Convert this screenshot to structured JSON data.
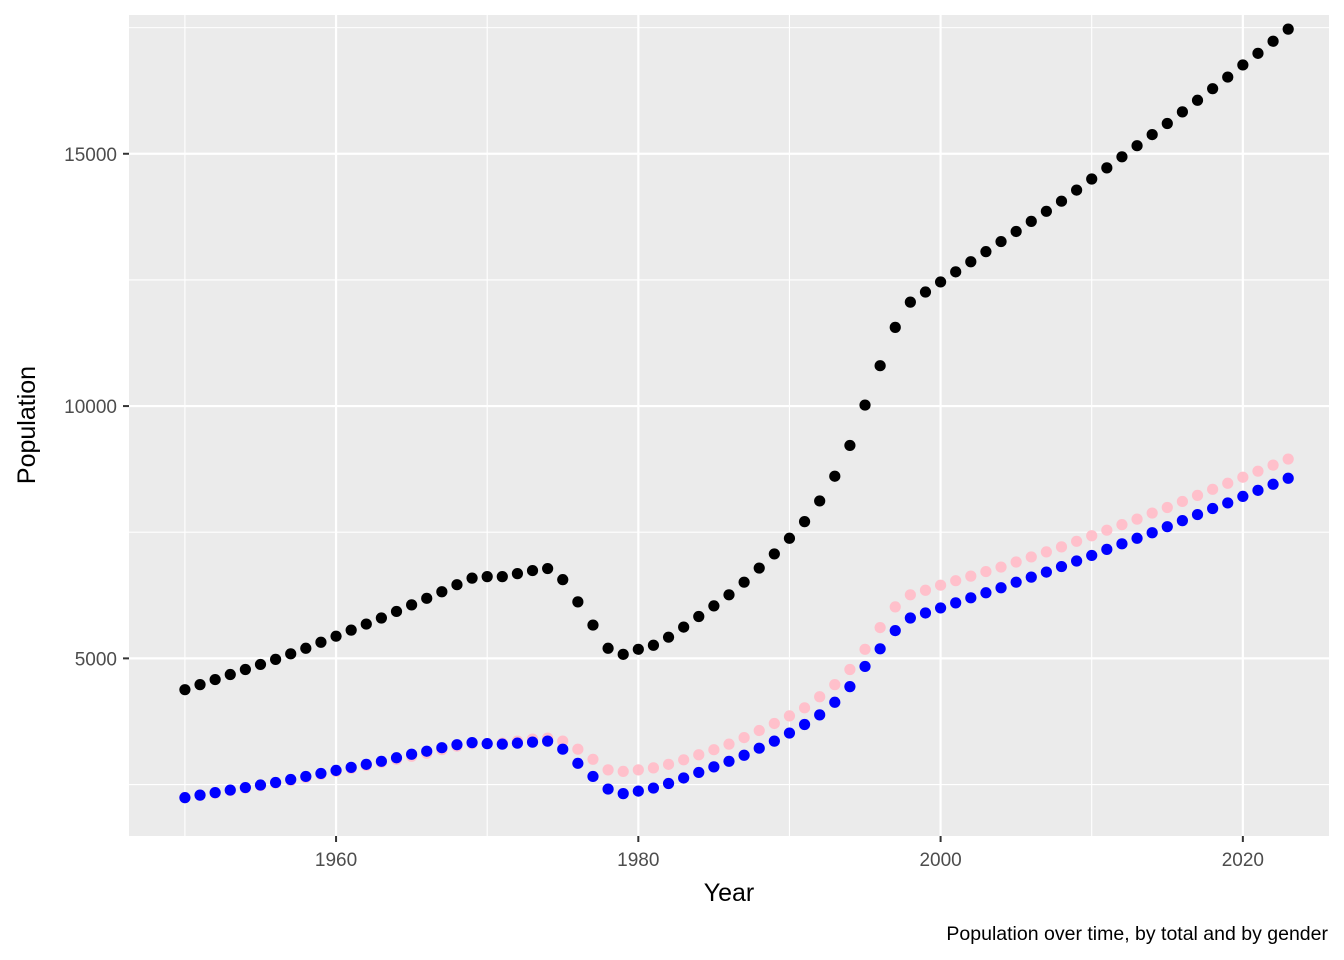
{
  "chart_data": {
    "type": "scatter",
    "title": "",
    "caption": "Population over time, by total and by gender",
    "xlabel": "Year",
    "ylabel": "Population",
    "xlim": [
      1946.3,
      1926.7
    ],
    "ylim": [
      1480,
      17750
    ],
    "x_ticks": [
      1960,
      1980,
      2000,
      2020
    ],
    "x_tick_labels": [
      "1960",
      "1980",
      "2000",
      "2020"
    ],
    "y_ticks": [
      5000,
      10000,
      15000
    ],
    "y_tick_labels": [
      "5000",
      "10000",
      "15000"
    ],
    "grid": true,
    "panel_background": "#ebebeb",
    "legend": "none",
    "x": [
      1950,
      1951,
      1952,
      1953,
      1954,
      1955,
      1956,
      1957,
      1958,
      1959,
      1960,
      1961,
      1962,
      1963,
      1964,
      1965,
      1966,
      1967,
      1968,
      1969,
      1970,
      1971,
      1972,
      1973,
      1974,
      1975,
      1976,
      1977,
      1978,
      1979,
      1980,
      1981,
      1982,
      1983,
      1984,
      1985,
      1986,
      1987,
      1988,
      1989,
      1990,
      1991,
      1992,
      1993,
      1994,
      1995,
      1996,
      1997,
      1998,
      1999,
      2000,
      2001,
      2002,
      2003,
      2004,
      2005,
      2006,
      2007,
      2008,
      2009,
      2010,
      2011,
      2012,
      2013,
      2014,
      2015,
      2016,
      2017,
      2018,
      2019,
      2020,
      2021,
      2022,
      2023
    ],
    "series": [
      {
        "color": "#000000",
        "values": [
          4380,
          4480,
          4580,
          4680,
          4780,
          4880,
          4980,
          5090,
          5200,
          5320,
          5440,
          5560,
          5680,
          5800,
          5930,
          6060,
          6190,
          6320,
          6460,
          6590,
          6620,
          6620,
          6680,
          6740,
          6780,
          6560,
          6120,
          5660,
          5200,
          5080,
          5180,
          5260,
          5420,
          5620,
          5830,
          6040,
          6260,
          6510,
          6790,
          7070,
          7380,
          7710,
          8120,
          8610,
          9220,
          10020,
          10800,
          11560,
          12060,
          12260,
          12460,
          12660,
          12860,
          13060,
          13260,
          13460,
          13660,
          13860,
          14060,
          14280,
          14500,
          14720,
          14940,
          15160,
          15380,
          15600,
          15830,
          16060,
          16290,
          16520,
          16760,
          16990,
          17230,
          17470
        ]
      },
      {
        "color": "#ffc0cb",
        "values": [
          2240,
          2290,
          2330,
          2380,
          2430,
          2480,
          2530,
          2580,
          2640,
          2700,
          2760,
          2820,
          2880,
          2940,
          3000,
          3060,
          3120,
          3190,
          3260,
          3310,
          3310,
          3320,
          3360,
          3400,
          3420,
          3360,
          3200,
          3000,
          2790,
          2760,
          2790,
          2830,
          2900,
          2990,
          3090,
          3190,
          3300,
          3430,
          3570,
          3710,
          3860,
          4020,
          4240,
          4480,
          4780,
          5180,
          5610,
          6020,
          6260,
          6350,
          6450,
          6540,
          6630,
          6720,
          6810,
          6910,
          7010,
          7110,
          7210,
          7320,
          7430,
          7540,
          7650,
          7760,
          7880,
          7990,
          8110,
          8230,
          8350,
          8470,
          8590,
          8710,
          8830,
          8950
        ]
      },
      {
        "color": "#0000ff",
        "values": [
          2240,
          2290,
          2340,
          2390,
          2440,
          2490,
          2540,
          2600,
          2660,
          2720,
          2780,
          2840,
          2900,
          2960,
          3030,
          3100,
          3160,
          3230,
          3290,
          3330,
          3310,
          3300,
          3320,
          3340,
          3360,
          3200,
          2920,
          2660,
          2410,
          2320,
          2370,
          2430,
          2520,
          2630,
          2740,
          2850,
          2960,
          3080,
          3220,
          3360,
          3520,
          3690,
          3880,
          4130,
          4440,
          4840,
          5190,
          5550,
          5800,
          5900,
          6000,
          6100,
          6200,
          6300,
          6400,
          6510,
          6610,
          6710,
          6820,
          6930,
          7040,
          7160,
          7270,
          7380,
          7490,
          7610,
          7730,
          7850,
          7970,
          8080,
          8210,
          8330,
          8450,
          8570
        ]
      }
    ]
  }
}
